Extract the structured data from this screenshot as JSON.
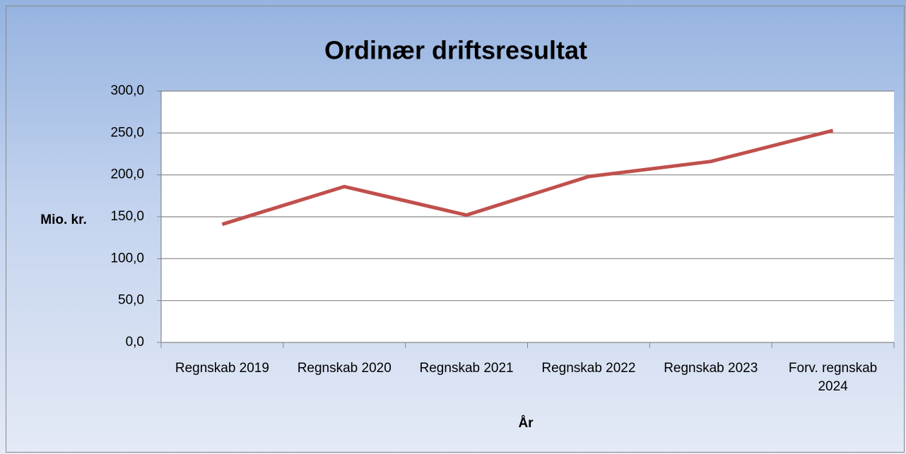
{
  "chart_data": {
    "type": "line",
    "title": "Ordinær driftsresultat",
    "x_label": "År",
    "y_label": "Mio. kr.",
    "categories": [
      "Regnskab 2019",
      "Regnskab 2020",
      "Regnskab 2021",
      "Regnskab 2022",
      "Regnskab 2023",
      "Forv. regnskab 2024"
    ],
    "series": [
      {
        "name": "Ordinær driftsresultat",
        "color": "#c0504d",
        "values": [
          141,
          186,
          152,
          198,
          216,
          253
        ]
      }
    ],
    "ylim": [
      0,
      300
    ],
    "yticks": [
      {
        "value": 0,
        "label": "0,0"
      },
      {
        "value": 50,
        "label": "50,0"
      },
      {
        "value": 100,
        "label": "100,0"
      },
      {
        "value": 150,
        "label": "150,0"
      },
      {
        "value": 200,
        "label": "200,0"
      },
      {
        "value": 250,
        "label": "250,0"
      },
      {
        "value": 300,
        "label": "300,0"
      }
    ],
    "grid": true
  }
}
